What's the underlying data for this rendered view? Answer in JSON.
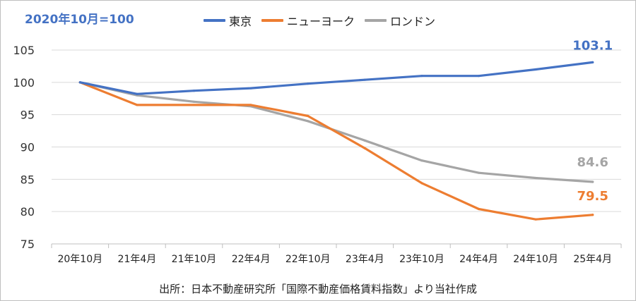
{
  "chart_data": {
    "type": "line",
    "base_note": "2020年10月=100",
    "categories": [
      "20年10月",
      "21年4月",
      "21年10月",
      "22年4月",
      "22年10月",
      "23年4月",
      "23年10月",
      "24年4月",
      "24年10月",
      "25年4月"
    ],
    "series": [
      {
        "name": "東京",
        "color": "#4472c4",
        "values": [
          100,
          98.2,
          98.7,
          99.1,
          99.8,
          100.4,
          101.0,
          101.0,
          102.0,
          103.1
        ],
        "end_label": "103.1"
      },
      {
        "name": "ニューヨーク",
        "color": "#ed7d31",
        "values": [
          100,
          96.5,
          96.5,
          96.5,
          94.8,
          89.8,
          84.4,
          80.4,
          78.8,
          79.5
        ],
        "end_label": "79.5"
      },
      {
        "name": "ロンドン",
        "color": "#a5a5a5",
        "values": [
          100,
          98.0,
          97.0,
          96.3,
          94.0,
          91.0,
          87.9,
          86.0,
          85.2,
          84.6
        ],
        "end_label": "84.6"
      }
    ],
    "ylim": [
      75,
      105
    ],
    "yticks": [
      75,
      80,
      85,
      90,
      95,
      100,
      105
    ],
    "grid": true,
    "legend_position": "top-center",
    "xlabel": "",
    "ylabel": ""
  },
  "source_note": "出所：日本不動産研究所「国際不動産価格賃料指数」より当社作成"
}
